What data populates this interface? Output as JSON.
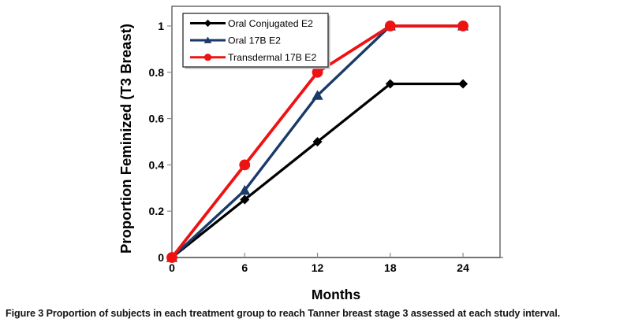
{
  "figure": {
    "caption_label": "Figure 3",
    "caption_text": "Proportion of subjects in each treatment group to reach Tanner breast stage 3 assessed at each study interval."
  },
  "chart_data": {
    "type": "line",
    "title": "",
    "xlabel": "Months",
    "ylabel": "Proportion Feminized (T3 Breast)",
    "x": [
      0,
      6,
      12,
      18,
      24
    ],
    "x_tick_labels": [
      "0",
      "6",
      "12",
      "18",
      "24"
    ],
    "y_ticks": [
      0,
      0.2,
      0.4,
      0.6,
      0.8,
      1
    ],
    "y_tick_labels": [
      "0",
      "0.2",
      "0.4",
      "0.6",
      "0.8",
      "1"
    ],
    "xlim": [
      0,
      27.05
    ],
    "ylim": [
      0,
      1.085
    ],
    "grid": false,
    "legend_position": "upper-left-inside",
    "series": [
      {
        "name": "Oral Conjugated E2",
        "marker": "diamond",
        "color": "#000000",
        "line_width": 3.3,
        "values": [
          0,
          0.25,
          0.5,
          0.75,
          0.75
        ]
      },
      {
        "name": "Oral 17B E2",
        "marker": "triangle",
        "color": "#1a3a68",
        "line_width": 3.4,
        "values": [
          0,
          0.29,
          0.7,
          1,
          1
        ]
      },
      {
        "name": "Transdermal 17B E2",
        "marker": "circle",
        "color": "#ee1212",
        "line_width": 3.8,
        "values": [
          0,
          0.4,
          0.8,
          1,
          1
        ]
      }
    ],
    "colors": {
      "frame": "#5f5f5f",
      "axis_line": "#a6a6a6",
      "tick": "#8a8a8a",
      "background": "#ffffff"
    }
  }
}
